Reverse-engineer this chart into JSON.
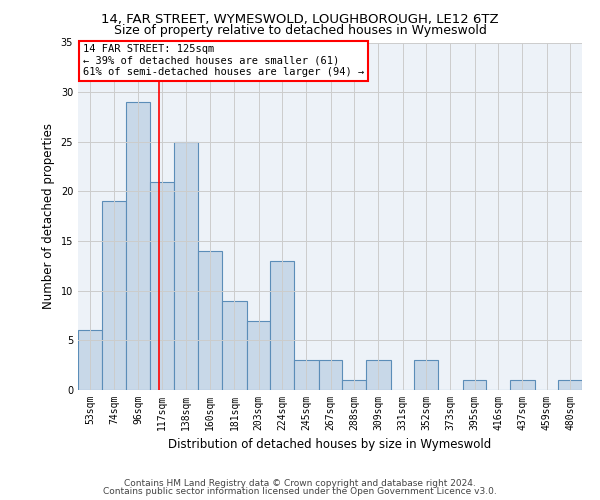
{
  "title1": "14, FAR STREET, WYMESWOLD, LOUGHBOROUGH, LE12 6TZ",
  "title2": "Size of property relative to detached houses in Wymeswold",
  "xlabel": "Distribution of detached houses by size in Wymeswold",
  "ylabel": "Number of detached properties",
  "footer1": "Contains HM Land Registry data © Crown copyright and database right 2024.",
  "footer2": "Contains public sector information licensed under the Open Government Licence v3.0.",
  "annotation_line1": "14 FAR STREET: 125sqm",
  "annotation_line2": "← 39% of detached houses are smaller (61)",
  "annotation_line3": "61% of semi-detached houses are larger (94) →",
  "bar_color": "#c8d8e8",
  "bar_edge_color": "#5b8db8",
  "bar_edge_width": 0.8,
  "grid_color": "#cccccc",
  "redline_color": "red",
  "redline_x": 125,
  "bins": [
    53,
    74,
    96,
    117,
    138,
    160,
    181,
    203,
    224,
    245,
    267,
    288,
    309,
    331,
    352,
    373,
    395,
    416,
    437,
    459,
    480
  ],
  "counts": [
    6,
    19,
    29,
    21,
    25,
    14,
    9,
    7,
    13,
    3,
    3,
    1,
    3,
    0,
    3,
    0,
    1,
    0,
    1,
    0,
    1
  ],
  "ylim": [
    0,
    35
  ],
  "yticks": [
    0,
    5,
    10,
    15,
    20,
    25,
    30,
    35
  ],
  "background_color": "#edf2f8",
  "title1_fontsize": 9.5,
  "title2_fontsize": 9,
  "ylabel_fontsize": 8.5,
  "xlabel_fontsize": 8.5,
  "tick_fontsize": 7,
  "footer_fontsize": 6.5,
  "ann_fontsize": 7.5
}
